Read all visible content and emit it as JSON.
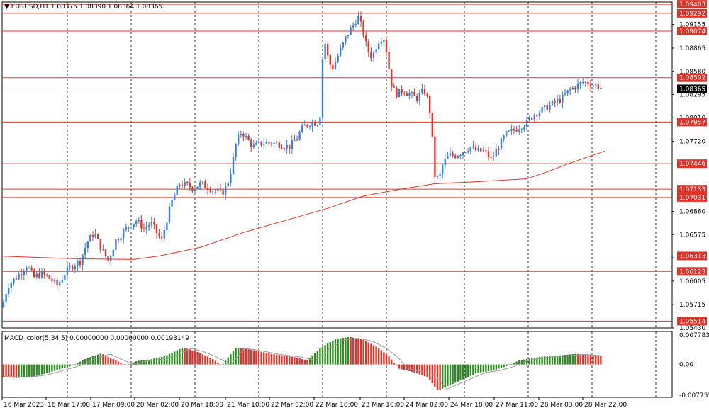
{
  "header": {
    "symbol_line": "EURUSD,H1  1.08375 1.08390 1.08364 1.08365",
    "macd_line": "MACD_color(5,34,5) 0.00000000 0.00000000 0.00193149"
  },
  "colors": {
    "bull": "#3b7fd6",
    "bear": "#e0342b",
    "level_line": "#e0342b",
    "ma_line": "#e0342b",
    "grid": "#000000",
    "macd_pos_up": "#2e8b22",
    "macd_neg_down": "#e0342b",
    "current_price_bg": "#000000"
  },
  "chart_data": {
    "type": "candlestick",
    "symbol": "EURUSD",
    "timeframe": "H1",
    "price_axis": {
      "ticks": [
        "1.09155",
        "1.08865",
        "1.08580",
        "1.08295",
        "1.08010",
        "1.07720",
        "1.06860",
        "1.06575",
        "1.06290",
        "1.06005",
        "1.05715",
        "1.05430"
      ],
      "range": [
        1.0543,
        1.0943
      ]
    },
    "levels": [
      {
        "value": 1.09403,
        "label": "1.09403"
      },
      {
        "value": 1.09292,
        "label": "1.09292"
      },
      {
        "value": 1.09074,
        "label": "1.09074"
      },
      {
        "value": 1.08502,
        "label": "1.08502"
      },
      {
        "value": 1.07957,
        "label": "1.07957"
      },
      {
        "value": 1.07446,
        "label": "1.07446"
      },
      {
        "value": 1.07133,
        "label": "1.07133"
      },
      {
        "value": 1.07031,
        "label": "1.07031"
      },
      {
        "value": 1.06313,
        "label": "1.06313"
      },
      {
        "value": 1.06123,
        "label": "1.06123"
      },
      {
        "value": 1.05514,
        "label": "1.05514"
      }
    ],
    "current_price": {
      "value": 1.08365,
      "label": "1.08365"
    },
    "time_axis": [
      "16 Mar 2023",
      "16 Mar 17:00",
      "17 Mar 09:00",
      "20 Mar 02:00",
      "20 Mar 18:00",
      "21 Mar 10:00",
      "22 Mar 02:00",
      "22 Mar 18:00",
      "23 Mar 10:00",
      "24 Mar 02:00",
      "24 Mar 18:00",
      "27 Mar 11:00",
      "28 Mar 03:00",
      "28 Mar 22:00"
    ],
    "price_path": [
      [
        0,
        1.0568
      ],
      [
        8,
        1.0595
      ],
      [
        20,
        1.0605
      ],
      [
        35,
        1.062
      ],
      [
        45,
        1.0605
      ],
      [
        55,
        1.061
      ],
      [
        65,
        1.0605
      ],
      [
        78,
        1.0595
      ],
      [
        90,
        1.0612
      ],
      [
        100,
        1.062
      ],
      [
        110,
        1.0625
      ],
      [
        120,
        1.0648
      ],
      [
        130,
        1.066
      ],
      [
        140,
        1.064
      ],
      [
        150,
        1.0625
      ],
      [
        160,
        1.065
      ],
      [
        170,
        1.066
      ],
      [
        180,
        1.067
      ],
      [
        190,
        1.0675
      ],
      [
        200,
        1.0665
      ],
      [
        210,
        1.0672
      ],
      [
        218,
        1.066
      ],
      [
        225,
        1.065
      ],
      [
        232,
        1.0675
      ],
      [
        240,
        1.07
      ],
      [
        250,
        1.072
      ],
      [
        260,
        1.0718
      ],
      [
        270,
        1.0715
      ],
      [
        280,
        1.072
      ],
      [
        290,
        1.0716
      ],
      [
        300,
        1.0712
      ],
      [
        310,
        1.0708
      ],
      [
        318,
        1.072
      ],
      [
        325,
        1.0745
      ],
      [
        330,
        1.077
      ],
      [
        338,
        1.0785
      ],
      [
        345,
        1.0775
      ],
      [
        355,
        1.0765
      ],
      [
        365,
        1.077
      ],
      [
        380,
        1.077
      ],
      [
        395,
        1.0768
      ],
      [
        405,
        1.0765
      ],
      [
        415,
        1.0775
      ],
      [
        425,
        1.079
      ],
      [
        435,
        1.0795
      ],
      [
        445,
        1.0795
      ],
      [
        450,
        1.081
      ],
      [
        453,
        1.0905
      ],
      [
        458,
        1.088
      ],
      [
        465,
        1.086
      ],
      [
        475,
        1.088
      ],
      [
        485,
        1.09
      ],
      [
        495,
        1.0915
      ],
      [
        502,
        1.0925
      ],
      [
        508,
        1.091
      ],
      [
        515,
        1.0885
      ],
      [
        522,
        1.0875
      ],
      [
        530,
        1.0895
      ],
      [
        538,
        1.09
      ],
      [
        543,
        1.088
      ],
      [
        548,
        1.0845
      ],
      [
        555,
        1.083
      ],
      [
        565,
        1.0835
      ],
      [
        575,
        1.083
      ],
      [
        585,
        1.0825
      ],
      [
        595,
        1.0835
      ],
      [
        602,
        1.082
      ],
      [
        606,
        1.0785
      ],
      [
        610,
        1.073
      ],
      [
        616,
        1.0725
      ],
      [
        622,
        1.0745
      ],
      [
        630,
        1.0755
      ],
      [
        640,
        1.0755
      ],
      [
        650,
        1.076
      ],
      [
        660,
        1.0765
      ],
      [
        670,
        1.076
      ],
      [
        680,
        1.076
      ],
      [
        690,
        1.075
      ],
      [
        700,
        1.0765
      ],
      [
        710,
        1.078
      ],
      [
        720,
        1.0785
      ],
      [
        730,
        1.079
      ],
      [
        740,
        1.0795
      ],
      [
        750,
        1.0805
      ],
      [
        760,
        1.081
      ],
      [
        770,
        1.0815
      ],
      [
        780,
        1.082
      ],
      [
        790,
        1.0825
      ],
      [
        800,
        1.0835
      ],
      [
        810,
        1.084
      ],
      [
        820,
        1.0845
      ],
      [
        830,
        1.0843
      ],
      [
        840,
        1.084
      ],
      [
        848,
        1.08365
      ]
    ],
    "ma_path": [
      [
        0,
        1.0631
      ],
      [
        100,
        1.0628
      ],
      [
        185,
        1.0627
      ],
      [
        220,
        1.0631
      ],
      [
        280,
        1.0642
      ],
      [
        340,
        1.066
      ],
      [
        400,
        1.0675
      ],
      [
        460,
        1.069
      ],
      [
        510,
        1.0705
      ],
      [
        560,
        1.0713
      ],
      [
        610,
        1.072
      ],
      [
        660,
        1.0722
      ],
      [
        700,
        1.0724
      ],
      [
        740,
        1.0726
      ],
      [
        770,
        1.0735
      ],
      [
        800,
        1.0745
      ],
      [
        850,
        1.076
      ]
    ],
    "macd": {
      "axis_ticks": [
        "0.0077832",
        "0.00",
        "-0.0077556"
      ],
      "range": [
        -0.0077556,
        0.0077832
      ],
      "bar_path": [
        [
          0,
          -0.003
        ],
        [
          20,
          -0.0032
        ],
        [
          45,
          -0.0028
        ],
        [
          60,
          -0.0022
        ],
        [
          80,
          -0.0012
        ],
        [
          100,
          -0.0002
        ],
        [
          120,
          0.0015
        ],
        [
          140,
          0.0026
        ],
        [
          160,
          0.001
        ],
        [
          175,
          -0.0002
        ],
        [
          190,
          0.0008
        ],
        [
          210,
          0.0012
        ],
        [
          230,
          0.002
        ],
        [
          255,
          0.004
        ],
        [
          275,
          0.003
        ],
        [
          295,
          0.0015
        ],
        [
          310,
          -0.0002
        ],
        [
          330,
          0.004
        ],
        [
          350,
          0.0035
        ],
        [
          380,
          0.0025
        ],
        [
          410,
          0.0018
        ],
        [
          430,
          0.001
        ],
        [
          450,
          0.004
        ],
        [
          470,
          0.006
        ],
        [
          490,
          0.0065
        ],
        [
          510,
          0.0058
        ],
        [
          530,
          0.004
        ],
        [
          545,
          0.002
        ],
        [
          560,
          -0.001
        ],
        [
          580,
          -0.0018
        ],
        [
          600,
          -0.003
        ],
        [
          615,
          -0.0062
        ],
        [
          630,
          -0.005
        ],
        [
          650,
          -0.0035
        ],
        [
          670,
          -0.002
        ],
        [
          690,
          -0.0015
        ],
        [
          710,
          -0.0005
        ],
        [
          730,
          0.001
        ],
        [
          760,
          0.0018
        ],
        [
          790,
          0.0022
        ],
        [
          810,
          0.0025
        ],
        [
          830,
          0.0022
        ],
        [
          848,
          0.0019
        ]
      ]
    }
  }
}
